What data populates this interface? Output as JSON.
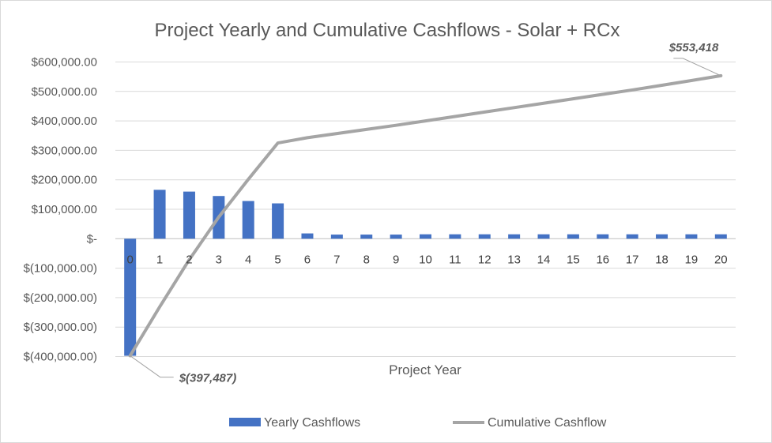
{
  "chart_data": {
    "type": "bar",
    "title": "Project Yearly and Cumulative Cashflows - Solar + RCx",
    "xlabel": "Project Year",
    "ylabel": "",
    "ylim": [
      -400000,
      600000
    ],
    "y_ticks": [
      600000,
      500000,
      400000,
      300000,
      200000,
      100000,
      0,
      -100000,
      -200000,
      -300000,
      -400000
    ],
    "y_tick_labels": [
      "$600,000.00",
      "$500,000.00",
      "$400,000.00",
      "$300,000.00",
      "$200,000.00",
      "$100,000.00",
      "$-",
      "$(100,000.00)",
      "$(200,000.00)",
      "$(300,000.00)",
      "$(400,000.00)"
    ],
    "categories": [
      "0",
      "1",
      "2",
      "3",
      "4",
      "5",
      "6",
      "7",
      "8",
      "9",
      "10",
      "11",
      "12",
      "13",
      "14",
      "15",
      "16",
      "17",
      "18",
      "19",
      "20"
    ],
    "series": [
      {
        "name": "Yearly Cashflows",
        "type": "bar",
        "color": "#4472c4",
        "values": [
          -397487,
          166000,
          160000,
          145000,
          128000,
          120000,
          18000,
          14000,
          14000,
          14000,
          15000,
          15000,
          15000,
          15000,
          15000,
          15000,
          15000,
          15000,
          15000,
          15000,
          15000
        ]
      },
      {
        "name": "Cumulative Cashflow",
        "type": "line",
        "color": "#a5a5a5",
        "values": [
          -397487,
          -231487,
          -71487,
          73513,
          201513,
          325000,
          343000,
          357000,
          371000,
          385000,
          400000,
          415000,
          430000,
          445000,
          460000,
          475000,
          490000,
          505000,
          521000,
          537000,
          553418
        ]
      }
    ],
    "annotations": [
      {
        "text": "$(397,487)",
        "category": "0",
        "series": "Cumulative Cashflow"
      },
      {
        "text": "$553,418",
        "category": "20",
        "series": "Cumulative Cashflow"
      }
    ],
    "legend": {
      "position": "bottom",
      "entries": [
        "Yearly Cashflows",
        "Cumulative Cashflow"
      ]
    },
    "grid": true
  }
}
